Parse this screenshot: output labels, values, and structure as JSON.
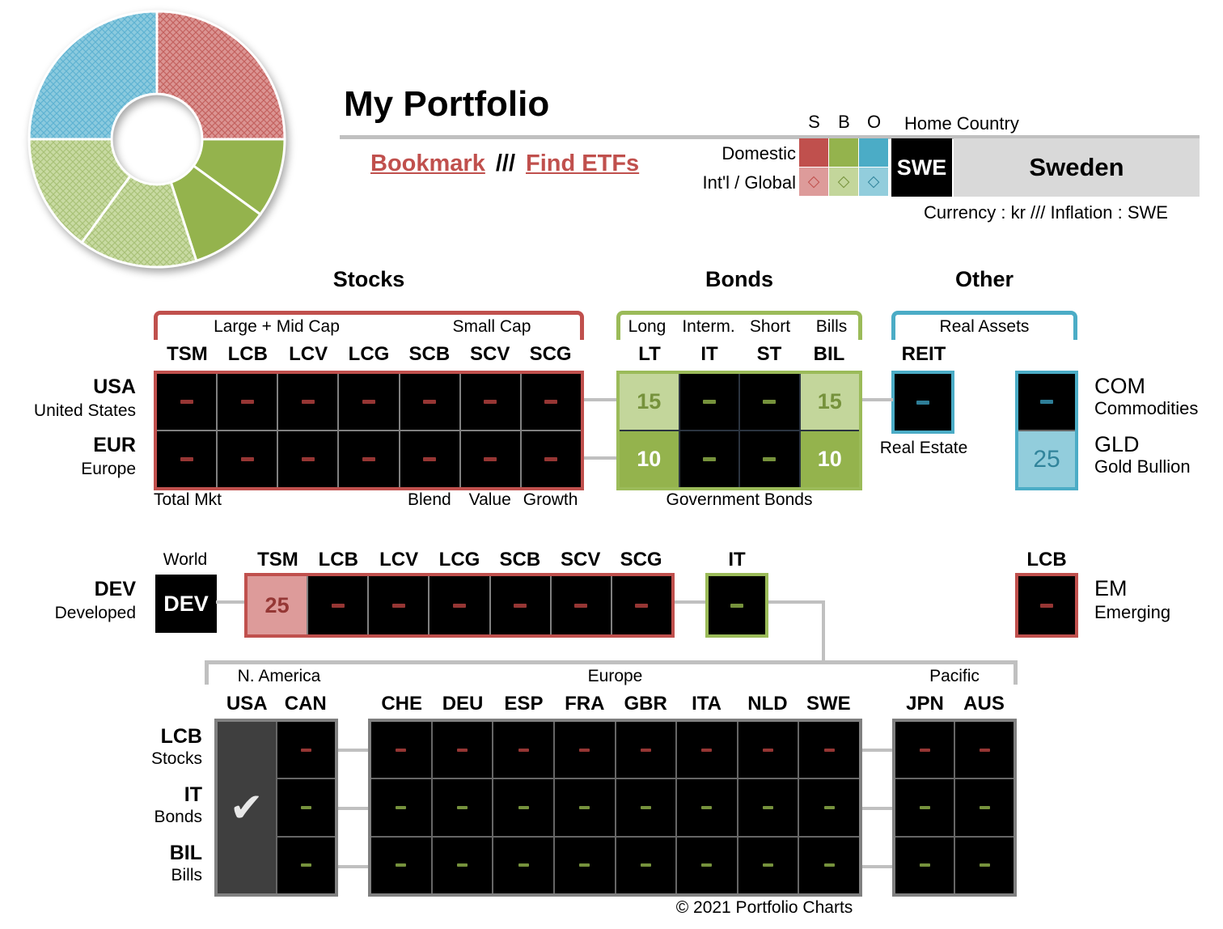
{
  "page": {
    "title": "My Portfolio",
    "footer": "© 2021 Portfolio Charts"
  },
  "header": {
    "bookmark_label": "Bookmark",
    "separator": "///",
    "find_etfs_label": "Find ETFs",
    "legend": {
      "columns": [
        "S",
        "B",
        "O"
      ],
      "domestic_label": "Domestic",
      "intl_label": "Int'l / Global",
      "intl_marker": "◇",
      "home_country_label": "Home Country",
      "home_country_code": "SWE",
      "home_country_name": "Sweden",
      "currency_line": "Currency : kr  ///  Inflation : SWE"
    }
  },
  "colors": {
    "stock_accent": "#c0504d",
    "stock_light": "#dd9b9a",
    "stock_text": "#953735",
    "bond_accent": "#9bbb59",
    "bond_fill": "#94b34d",
    "bond_light": "#c3d69b",
    "bond_text": "#76923c",
    "other_accent": "#4bacc6",
    "other_light": "#92cddc",
    "other_text": "#31849b",
    "bracket_gray": "#bfbfbf",
    "grid_gray": "#808080",
    "home_cell_gray": "#3f3f3f"
  },
  "donut": {
    "type": "pie",
    "segments": [
      {
        "value": 25,
        "paint": "stock-intl"
      },
      {
        "value": 10,
        "paint": "bond-domestic"
      },
      {
        "value": 10,
        "paint": "bond-domestic"
      },
      {
        "value": 15,
        "paint": "bond-intl"
      },
      {
        "value": 15,
        "paint": "bond-intl"
      },
      {
        "value": 25,
        "paint": "other-global"
      }
    ]
  },
  "stocks": {
    "title": "Stocks",
    "cap_labels": [
      "Large + Mid Cap",
      "Small Cap"
    ],
    "columns": [
      "TSM",
      "LCB",
      "LCV",
      "LCG",
      "SCB",
      "SCV",
      "SCG"
    ],
    "rows": [
      {
        "code": "USA",
        "name": "United States",
        "values": [
          "-",
          "-",
          "-",
          "-",
          "-",
          "-",
          "-"
        ]
      },
      {
        "code": "EUR",
        "name": "Europe",
        "values": [
          "-",
          "-",
          "-",
          "-",
          "-",
          "-",
          "-"
        ]
      }
    ],
    "style_labels": [
      {
        "text": "Total Mkt",
        "col": 0,
        "align": "left"
      },
      {
        "text": "Blend",
        "col": 4,
        "align": "center"
      },
      {
        "text": "Value",
        "col": 5,
        "align": "center"
      },
      {
        "text": "Growth",
        "col": 6,
        "align": "center"
      }
    ]
  },
  "bonds": {
    "title": "Bonds",
    "duration_labels": [
      "Long",
      "Interm.",
      "Short",
      "Bills"
    ],
    "columns": [
      "LT",
      "IT",
      "ST",
      "BIL"
    ],
    "rows": [
      {
        "variant": "intl",
        "values": [
          "15",
          "-",
          "-",
          "15"
        ]
      },
      {
        "variant": "domestic",
        "values": [
          "10",
          "-",
          "-",
          "10"
        ]
      }
    ],
    "footer_label": "Government Bonds"
  },
  "other": {
    "title": "Other",
    "bracket_label": "Real Assets",
    "reit_column": "REIT",
    "reit_value": "-",
    "reit_label": "Real Estate",
    "com": {
      "code": "COM",
      "name": "Commodities",
      "value": "-"
    },
    "gld": {
      "code": "GLD",
      "name": "Gold Bullion",
      "value": "25"
    }
  },
  "world": {
    "region_label": "World",
    "box": "DEV",
    "row_code": "DEV",
    "row_name": "Developed",
    "columns": [
      "TSM",
      "LCB",
      "LCV",
      "LCG",
      "SCB",
      "SCV",
      "SCG"
    ],
    "values": [
      "25",
      "-",
      "-",
      "-",
      "-",
      "-",
      "-"
    ],
    "it_column": "IT",
    "it_value": "-",
    "em_column": "LCB",
    "em_code": "EM",
    "em_name": "Emerging",
    "em_value": "-"
  },
  "countries": {
    "regions": [
      {
        "name": "N. America",
        "columns": [
          "USA",
          "CAN"
        ]
      },
      {
        "name": "Europe",
        "columns": [
          "CHE",
          "DEU",
          "ESP",
          "FRA",
          "GBR",
          "ITA",
          "NLD",
          "SWE"
        ]
      },
      {
        "name": "Pacific",
        "columns": [
          "JPN",
          "AUS"
        ]
      }
    ],
    "rows": [
      {
        "code": "LCB",
        "name": "Stocks",
        "type": "stock"
      },
      {
        "code": "IT",
        "name": "Bonds",
        "type": "bond"
      },
      {
        "code": "BIL",
        "name": "Bills",
        "type": "bond"
      }
    ],
    "home_column": "USA",
    "home_checkmark": "✔"
  }
}
